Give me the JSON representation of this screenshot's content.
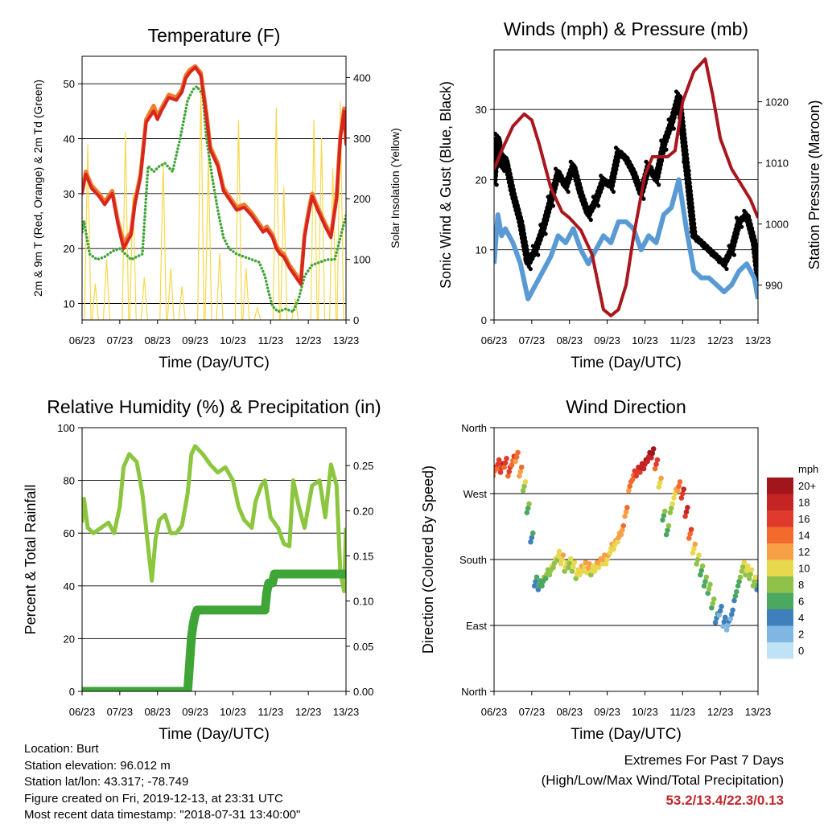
{
  "chart_data": [
    {
      "id": "temperature",
      "type": "line",
      "title": "Temperature (F)",
      "xlabel": "Time (Day/UTC)",
      "ylabel": "2m & 9m T (Red, Orange) & 2m Td (Green)",
      "y2label": "Solar Insolation (Yellow)",
      "x_ticks": [
        "06/23",
        "07/23",
        "08/23",
        "09/23",
        "10/23",
        "11/23",
        "12/23",
        "13/23"
      ],
      "xlim": [
        6,
        13
      ],
      "ylim": [
        7,
        55
      ],
      "y_ticks": [
        10,
        20,
        30,
        40,
        50
      ],
      "y2lim": [
        0,
        435
      ],
      "y2_ticks": [
        0,
        100,
        200,
        300,
        400
      ],
      "grid": "horizontal",
      "series": [
        {
          "color": "#d7261e",
          "x": [
            6.0,
            6.1,
            6.25,
            6.45,
            6.6,
            6.8,
            6.95,
            7.1,
            7.3,
            7.4,
            7.55,
            7.7,
            7.9,
            8.0,
            8.1,
            8.3,
            8.5,
            8.65,
            8.75,
            8.85,
            9.0,
            9.15,
            9.3,
            9.4,
            9.6,
            9.75,
            9.9,
            10.1,
            10.3,
            10.5,
            10.6,
            10.8,
            10.9,
            11.05,
            11.15,
            11.25,
            11.35,
            11.5,
            11.65,
            11.8,
            11.9,
            12.0,
            12.1,
            12.25,
            12.35,
            12.45,
            12.6,
            12.75,
            12.85,
            12.95,
            13.0
          ],
          "values": [
            30,
            33.5,
            31,
            29.5,
            28,
            30,
            24.5,
            20,
            22.5,
            28,
            33,
            43,
            45,
            43.5,
            45,
            47.5,
            47,
            48.5,
            51,
            52,
            53,
            51.5,
            44,
            38,
            35,
            30.5,
            29,
            27,
            27.5,
            26,
            25,
            23,
            23.5,
            22,
            20,
            19,
            18.5,
            16.5,
            15,
            13.5,
            22,
            26,
            29.5,
            27,
            25.5,
            24,
            22,
            29,
            40,
            45,
            39
          ]
        },
        {
          "color": "#f07b2c",
          "x": [
            6.0,
            6.1,
            6.25,
            6.45,
            6.6,
            6.8,
            6.95,
            7.1,
            7.3,
            7.4,
            7.55,
            7.7,
            7.9,
            8.0,
            8.1,
            8.3,
            8.5,
            8.65,
            8.75,
            8.85,
            9.0,
            9.15,
            9.3,
            9.4,
            9.6,
            9.75,
            9.9,
            10.1,
            10.3,
            10.5,
            10.6,
            10.8,
            10.9,
            11.05,
            11.15,
            11.25,
            11.35,
            11.5,
            11.65,
            11.8,
            11.9,
            12.0,
            12.1,
            12.25,
            12.35,
            12.45,
            12.6,
            12.75,
            12.85,
            12.95,
            13.0
          ],
          "values": [
            30.5,
            34,
            31.5,
            30,
            28.5,
            30.5,
            25,
            21,
            23,
            28.5,
            33.5,
            43.5,
            46,
            44,
            45.5,
            48,
            47.5,
            49,
            51.5,
            52.5,
            53.2,
            52,
            44.5,
            38.5,
            35.5,
            31,
            29.5,
            27.5,
            28,
            26.5,
            25.5,
            23.5,
            24,
            22.5,
            20.5,
            19.5,
            19,
            17,
            15.5,
            14,
            22.5,
            26.5,
            30,
            27.5,
            26,
            24.5,
            22.5,
            29.5,
            40.5,
            45.5,
            39.5
          ]
        },
        {
          "color": "#3fa537",
          "dotted": true,
          "x": [
            6.0,
            6.05,
            6.2,
            6.4,
            6.6,
            6.8,
            7.0,
            7.15,
            7.3,
            7.45,
            7.6,
            7.75,
            7.9,
            8.05,
            8.2,
            8.4,
            8.6,
            8.8,
            8.95,
            9.05,
            9.2,
            9.3,
            9.45,
            9.6,
            9.75,
            9.9,
            10.1,
            10.3,
            10.5,
            10.7,
            10.85,
            10.95,
            11.05,
            11.2,
            11.4,
            11.6,
            11.75,
            11.9,
            12.1,
            12.3,
            12.5,
            12.7,
            12.85,
            13.0
          ],
          "values": [
            23,
            25,
            19,
            18,
            18.5,
            19.5,
            20,
            19,
            18,
            18.5,
            19,
            35,
            34,
            35,
            35.5,
            34,
            40,
            47,
            49,
            49.5,
            48,
            40,
            33,
            27,
            22,
            20,
            19,
            18.5,
            18,
            17.5,
            15,
            12,
            9.5,
            8.5,
            9,
            8.5,
            11,
            15,
            17,
            17.5,
            18,
            18,
            22,
            26
          ]
        },
        {
          "color": "#f8d84a",
          "axis": "y2",
          "name": "solar",
          "x": [
            6.15,
            6.35,
            6.65,
            7.15,
            7.35,
            7.65,
            8.15,
            8.35,
            8.65,
            9.15,
            9.35,
            9.65,
            10.15,
            10.35,
            10.65,
            11.15,
            11.35,
            11.65,
            12.15,
            12.35,
            12.65,
            12.85
          ],
          "values": [
            290,
            60,
            100,
            310,
            210,
            70,
            260,
            85,
            55,
            385,
            270,
            110,
            330,
            85,
            20,
            350,
            220,
            35,
            330,
            300,
            250,
            360
          ]
        }
      ]
    },
    {
      "id": "winds",
      "type": "scatter",
      "title": "Winds (mph) & Pressure (mb)",
      "xlabel": "Time (Day/UTC)",
      "ylabel": "Sonic Wind & Gust (Blue, Black)",
      "y2label": "Station Pressure (Maroon)",
      "x_ticks": [
        "06/23",
        "07/23",
        "08/23",
        "09/23",
        "10/23",
        "11/23",
        "12/23",
        "13/23"
      ],
      "xlim": [
        6,
        13
      ],
      "ylim": [
        0,
        38.5
      ],
      "y_ticks": [
        0,
        10,
        20,
        30
      ],
      "y2lim": [
        984.3,
        1028.5
      ],
      "y2_ticks": [
        990,
        1000,
        1010,
        1020
      ],
      "grid": "horizontal",
      "series": [
        {
          "name": "gust",
          "color": "#000000",
          "x": [
            6.0,
            6.1,
            6.2,
            6.3,
            6.5,
            6.7,
            6.9,
            7.1,
            7.3,
            7.5,
            7.7,
            7.9,
            8.1,
            8.3,
            8.5,
            8.7,
            8.9,
            9.1,
            9.3,
            9.5,
            9.7,
            9.9,
            10.1,
            10.3,
            10.5,
            10.7,
            10.9,
            11.1,
            11.3,
            11.5,
            11.7,
            11.9,
            12.1,
            12.3,
            12.5,
            12.7,
            12.9,
            13.0
          ],
          "values": [
            20,
            26,
            22,
            23,
            18,
            14,
            8,
            10,
            13,
            17,
            21,
            19,
            22,
            18,
            15,
            17,
            20,
            19,
            24,
            23,
            21,
            18,
            22,
            20,
            25,
            28,
            32,
            22,
            12,
            11,
            10,
            9,
            8,
            10,
            14,
            15,
            11,
            6
          ]
        },
        {
          "name": "wind",
          "color": "#5a9ad4",
          "x": [
            6.0,
            6.1,
            6.2,
            6.3,
            6.5,
            6.7,
            6.9,
            7.1,
            7.3,
            7.5,
            7.7,
            7.9,
            8.1,
            8.3,
            8.5,
            8.7,
            8.9,
            9.1,
            9.3,
            9.5,
            9.7,
            9.9,
            10.1,
            10.3,
            10.5,
            10.7,
            10.9,
            11.1,
            11.3,
            11.5,
            11.7,
            11.9,
            12.1,
            12.3,
            12.5,
            12.7,
            12.9,
            13.0
          ],
          "values": [
            8,
            15,
            12,
            13,
            11,
            8,
            3,
            5,
            7,
            9,
            12,
            11,
            13,
            10,
            8,
            10,
            12,
            11,
            14,
            14,
            13,
            10,
            12,
            11,
            15,
            16,
            20,
            13,
            7,
            6,
            6,
            5,
            4,
            5,
            7,
            8,
            6,
            3
          ]
        },
        {
          "name": "pressure",
          "color": "#a8161e",
          "axis": "y2",
          "x": [
            6.0,
            6.2,
            6.5,
            6.8,
            7.0,
            7.2,
            7.5,
            7.8,
            8.0,
            8.3,
            8.6,
            8.9,
            9.1,
            9.3,
            9.5,
            9.7,
            10.0,
            10.2,
            10.4,
            10.6,
            10.8,
            11.0,
            11.3,
            11.6,
            11.8,
            12.0,
            12.3,
            12.6,
            12.8,
            13.0
          ],
          "values": [
            1009,
            1012,
            1016,
            1018,
            1017,
            1013,
            1006,
            1002,
            1001,
            999,
            995,
            986,
            985,
            986,
            990,
            998,
            1008,
            1011,
            1011,
            1011,
            1012,
            1020,
            1025,
            1027,
            1021,
            1014,
            1009,
            1006,
            1004,
            1001
          ]
        }
      ]
    },
    {
      "id": "humidity",
      "type": "line",
      "title": "Relative Humidity (%) & Precipitation (in)",
      "xlabel": "Time (Day/UTC)",
      "ylabel": "Percent & Total Rainfall",
      "x_ticks": [
        "06/23",
        "07/23",
        "08/23",
        "09/23",
        "10/23",
        "11/23",
        "12/23",
        "13/23"
      ],
      "xlim": [
        6,
        13
      ],
      "ylim": [
        0,
        100
      ],
      "y_ticks": [
        0,
        20,
        40,
        60,
        80,
        100
      ],
      "y2lim": [
        0,
        0.292
      ],
      "y2_ticks": [
        "0.00",
        "0.05",
        "0.10",
        "0.15",
        "0.20",
        "0.25"
      ],
      "grid": "horizontal",
      "series": [
        {
          "name": "rh",
          "color": "#8cc63f",
          "x": [
            6.0,
            6.05,
            6.15,
            6.3,
            6.5,
            6.7,
            6.85,
            7.0,
            7.1,
            7.25,
            7.45,
            7.6,
            7.75,
            7.85,
            7.95,
            8.05,
            8.2,
            8.35,
            8.5,
            8.65,
            8.8,
            8.9,
            9.0,
            9.2,
            9.4,
            9.6,
            9.8,
            10.0,
            10.15,
            10.3,
            10.5,
            10.6,
            10.75,
            10.85,
            11.0,
            11.2,
            11.35,
            11.5,
            11.6,
            11.75,
            11.9,
            12.1,
            12.3,
            12.45,
            12.6,
            12.75,
            12.85,
            12.95,
            13.0
          ],
          "values": [
            64,
            73,
            62,
            60,
            62,
            64,
            60,
            70,
            85,
            90,
            87,
            75,
            55,
            42,
            58,
            65,
            67,
            60,
            60,
            63,
            75,
            90,
            93,
            90,
            86,
            83,
            85,
            80,
            70,
            65,
            62,
            72,
            78,
            80,
            66,
            62,
            56,
            55,
            80,
            70,
            62,
            78,
            80,
            66,
            86,
            78,
            45,
            38,
            62
          ]
        },
        {
          "name": "rain",
          "color": "#3fa537",
          "x": [
            6.0,
            8.8,
            8.85,
            8.9,
            8.95,
            9.0,
            9.05,
            9.1,
            10.85,
            10.9,
            10.95,
            11.05,
            11.1,
            13.0
          ],
          "values": [
            0.0,
            0.0,
            0.03,
            0.06,
            0.075,
            0.085,
            0.09,
            0.09,
            0.09,
            0.11,
            0.12,
            0.12,
            0.13,
            0.13
          ]
        }
      ]
    },
    {
      "id": "wind_direction",
      "type": "scatter",
      "title": "Wind Direction",
      "xlabel": "Time (Day/UTC)",
      "ylabel": "Direction (Colored By Speed)",
      "x_ticks": [
        "06/23",
        "07/23",
        "08/23",
        "09/23",
        "10/23",
        "11/23",
        "12/23",
        "13/23"
      ],
      "xlim": [
        6,
        13
      ],
      "ylim": [
        0,
        360
      ],
      "y_ticks": [
        "North",
        "East",
        "South",
        "West",
        "North"
      ],
      "grid": "horizontal",
      "legend_title": "mph",
      "legend_labels": [
        "20+",
        "18",
        "16",
        "14",
        "12",
        "10",
        "8",
        "6",
        "4",
        "2",
        "0"
      ],
      "legend_colors": [
        "#a1161c",
        "#c42424",
        "#e03a2c",
        "#f26b2c",
        "#f7a048",
        "#e8d84e",
        "#8fc24a",
        "#4aa860",
        "#3f7fbc",
        "#7fb6e2",
        "#bfe2f6"
      ],
      "x": [
        6.0,
        6.1,
        6.2,
        6.3,
        6.4,
        6.5,
        6.6,
        6.7,
        6.8,
        6.9,
        7.0,
        7.1,
        7.2,
        7.3,
        7.4,
        7.5,
        7.6,
        7.7,
        7.8,
        7.9,
        8.0,
        8.1,
        8.2,
        8.3,
        8.4,
        8.5,
        8.6,
        8.7,
        8.8,
        8.9,
        9.0,
        9.1,
        9.2,
        9.3,
        9.4,
        9.5,
        9.6,
        9.7,
        9.8,
        9.9,
        10.0,
        10.1,
        10.2,
        10.3,
        10.4,
        10.5,
        10.6,
        10.7,
        10.8,
        10.9,
        11.0,
        11.1,
        11.2,
        11.3,
        11.4,
        11.5,
        11.6,
        11.7,
        11.8,
        11.9,
        12.0,
        12.1,
        12.2,
        12.3,
        12.4,
        12.5,
        12.6,
        12.7,
        12.8,
        12.9,
        13.0
      ],
      "values": [
        300,
        310,
        305,
        312,
        300,
        315,
        320,
        300,
        280,
        250,
        210,
        150,
        145,
        150,
        160,
        165,
        175,
        185,
        180,
        170,
        175,
        170,
        160,
        165,
        170,
        168,
        165,
        170,
        175,
        180,
        180,
        195,
        200,
        210,
        220,
        245,
        280,
        295,
        300,
        305,
        310,
        320,
        325,
        310,
        285,
        240,
        220,
        250,
        270,
        280,
        270,
        245,
        215,
        195,
        180,
        165,
        150,
        140,
        120,
        100,
        110,
        95,
        90,
        105,
        130,
        150,
        170,
        165,
        160,
        150,
        145
      ],
      "speeds": [
        14,
        15,
        16,
        15,
        15,
        14,
        13,
        12,
        8,
        6,
        4,
        4,
        5,
        6,
        7,
        8,
        8,
        9,
        10,
        9,
        8,
        9,
        9,
        10,
        10,
        11,
        9,
        10,
        11,
        11,
        10,
        10,
        10,
        11,
        12,
        12,
        13,
        14,
        16,
        17,
        18,
        18,
        19,
        15,
        10,
        6,
        6,
        8,
        10,
        13,
        16,
        17,
        14,
        10,
        8,
        6,
        6,
        7,
        7,
        4,
        3,
        3,
        2,
        3,
        5,
        6,
        8,
        9,
        8,
        8,
        5
      ]
    }
  ],
  "info": {
    "location": "Location: Burt",
    "elevation": "Station elevation: 96.012 m",
    "latlon": "Station lat/lon: 43.317; -78.749",
    "created": "Figure created on Fri, 2019-12-13, at 23:31 UTC",
    "recent": "Most recent data timestamp: \"2018-07-31 13:40:00\""
  },
  "extremes": {
    "title": "Extremes For Past 7 Days",
    "subtitle": "(High/Low/Max Wind/Total Precipitation)",
    "values": "53.2/13.4/22.3/0.13"
  }
}
